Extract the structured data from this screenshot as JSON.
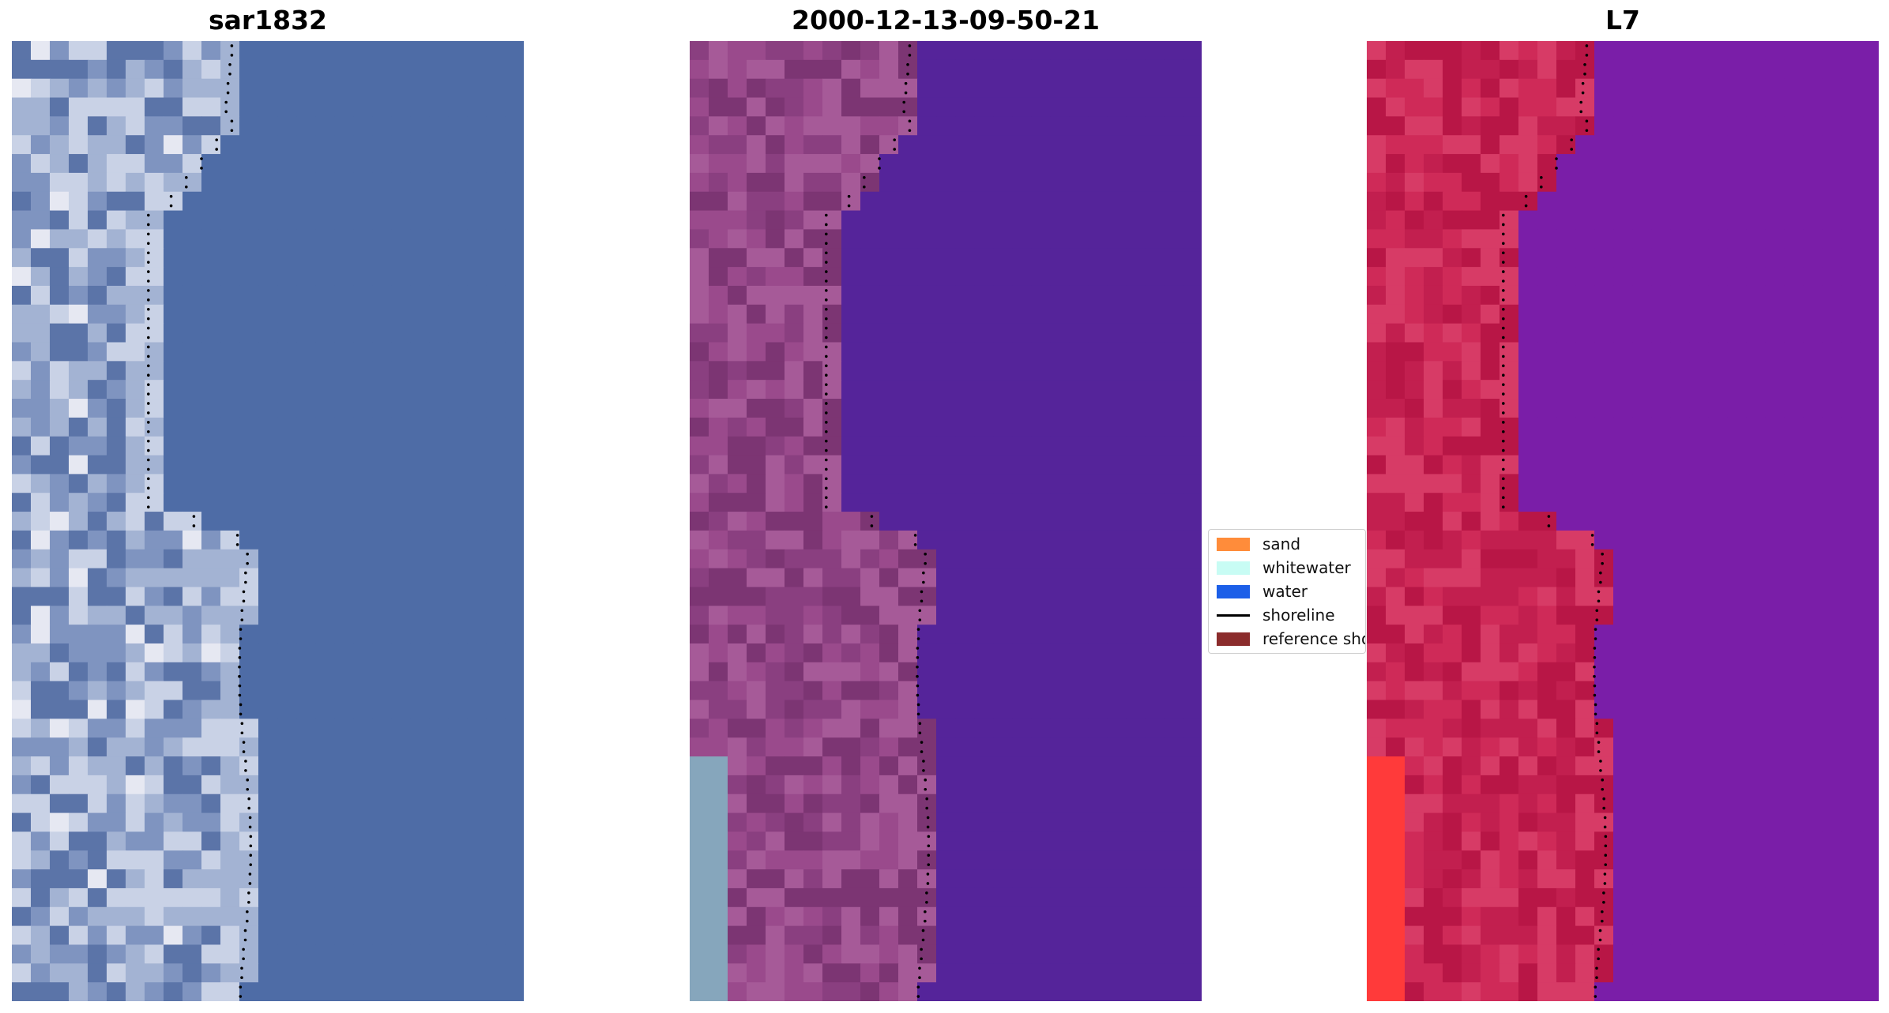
{
  "panels": [
    {
      "title": "sar1832",
      "palette": [
        "#5b74a8",
        "#7f94c0",
        "#a3b3d3",
        "#c9d2e6",
        "#4e6ca6",
        "#8aa2bf"
      ]
    },
    {
      "title": "2000-12-13-09-50-21",
      "palette": [
        "#8a3f80",
        "#9a4a8c",
        "#7c3573",
        "#a65a98",
        "#55249a",
        "#86a6bc"
      ]
    },
    {
      "title": "L7",
      "palette": [
        "#c21f4f",
        "#cf2a58",
        "#b81646",
        "#d73b66",
        "#7a1ea8",
        "#ff3a3a"
      ]
    }
  ],
  "legend": {
    "items": [
      {
        "label": "sand",
        "color": "#ff8c3a",
        "kind": "patch"
      },
      {
        "label": "whitewater",
        "color": "#c8fcf4",
        "kind": "patch"
      },
      {
        "label": "water",
        "color": "#1c5fe8",
        "kind": "patch"
      },
      {
        "label": "shoreline",
        "color": "#000000",
        "kind": "line"
      },
      {
        "label": "reference shoreline",
        "color": "#8b2c2c",
        "kind": "patch"
      }
    ]
  }
}
